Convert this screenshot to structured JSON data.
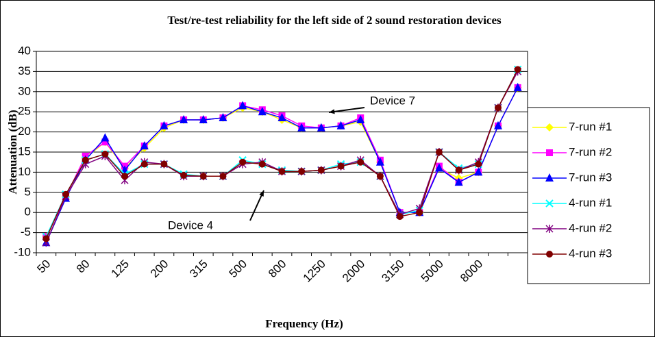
{
  "chart_data": {
    "type": "line",
    "title": "Test/re-test reliability for the left side of 2 sound restoration devices",
    "x_label": "Frequency (Hz)",
    "y_label": "Attenuation (dB)",
    "categories": [
      "50",
      null,
      "80",
      null,
      "125",
      null,
      "200",
      null,
      "315",
      null,
      "500",
      null,
      "800",
      null,
      "1250",
      null,
      "2000",
      null,
      "3150",
      null,
      "5000",
      null,
      "8000",
      null,
      null
    ],
    "ylim": [
      -10,
      40
    ],
    "yticks": [
      -10,
      -5,
      0,
      5,
      10,
      15,
      20,
      25,
      30,
      35,
      40
    ],
    "grid": true,
    "legend": "right",
    "annotations": [
      "Device 7",
      "Device 4"
    ],
    "series": [
      {
        "name": "7-run #1",
        "color": "#ffff00",
        "marker": "diamond",
        "values": [
          -6,
          4,
          13.5,
          17.5,
          11,
          16,
          21,
          23,
          23,
          23.5,
          26,
          25,
          23,
          21,
          21,
          21.5,
          22.5,
          12.5,
          0,
          0,
          11,
          8.5,
          10,
          21.5,
          31
        ]
      },
      {
        "name": "7-run #2",
        "color": "#ff00ff",
        "marker": "square",
        "values": [
          -6,
          4,
          14,
          17.5,
          11.5,
          16.5,
          21.5,
          23,
          23,
          23.5,
          26.5,
          25.5,
          24,
          21.5,
          21,
          21.5,
          23.5,
          13,
          0,
          0,
          11.5,
          7.5,
          10,
          21.5,
          31
        ]
      },
      {
        "name": "7-run #3",
        "color": "#0000ff",
        "marker": "triangle",
        "values": [
          -7.5,
          3.5,
          13,
          18.5,
          10.5,
          16.5,
          21.5,
          23,
          23,
          23.5,
          26.5,
          25,
          23.5,
          21,
          21,
          21.5,
          23,
          12.5,
          0,
          0,
          11,
          7.5,
          10,
          21.5,
          31
        ]
      },
      {
        "name": "4-run #1",
        "color": "#00ffff",
        "marker": "x",
        "values": [
          -6,
          4.5,
          13,
          14.5,
          9.5,
          12,
          12,
          9.5,
          9,
          9,
          13,
          12,
          10.5,
          10.2,
          10.5,
          12,
          12.5,
          9,
          -0.5,
          0.5,
          15,
          11,
          12,
          26,
          35.5
        ]
      },
      {
        "name": "4-run #2",
        "color": "#800080",
        "marker": "star",
        "values": [
          -7.5,
          4,
          12,
          14,
          8,
          12.5,
          12,
          9,
          9,
          9,
          12,
          12.5,
          10.2,
          10.2,
          10.5,
          11.5,
          13,
          9,
          -0.5,
          1,
          15,
          10.5,
          12.5,
          26,
          35
        ]
      },
      {
        "name": "4-run #3",
        "color": "#800000",
        "marker": "circle",
        "values": [
          -6.5,
          4.5,
          13,
          14.5,
          9,
          12,
          12,
          9.2,
          9,
          9,
          12.5,
          12,
          10.2,
          10.2,
          10.5,
          11.5,
          12.5,
          9,
          -1,
          0,
          15,
          10.5,
          12,
          26,
          35.5
        ]
      }
    ]
  }
}
